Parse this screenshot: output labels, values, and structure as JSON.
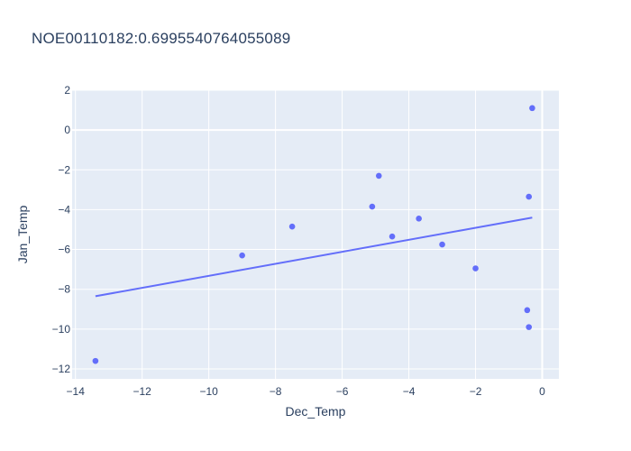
{
  "chart_data": {
    "type": "scatter",
    "title": "NOE00110182:0.6995540764055089",
    "xlabel": "Dec_Temp",
    "ylabel": "Jan_Temp",
    "xlim": [
      -14.1,
      0.5
    ],
    "ylim": [
      -12.5,
      2.0
    ],
    "xticks": [
      -14,
      -12,
      -10,
      -8,
      -6,
      -4,
      -2,
      0
    ],
    "yticks": [
      -12,
      -10,
      -8,
      -6,
      -4,
      -2,
      0,
      2
    ],
    "tick_labels_x": [
      "−14",
      "−12",
      "−10",
      "−8",
      "−6",
      "−4",
      "−2",
      "0"
    ],
    "tick_labels_y": [
      "−12",
      "−10",
      "−8",
      "−6",
      "−4",
      "−2",
      "0",
      "2"
    ],
    "grid": true,
    "colors": {
      "marker": "#636efa",
      "line": "#636efa",
      "plot_bg": "#e5ecf6",
      "grid": "#ffffff"
    },
    "series": [
      {
        "mode": "markers",
        "x": [
          -13.4,
          -9.0,
          -7.5,
          -5.1,
          -4.9,
          -4.5,
          -3.7,
          -3.0,
          -2.0,
          -0.45,
          -0.4,
          -0.4,
          -0.3
        ],
        "y": [
          -11.6,
          -6.3,
          -4.85,
          -3.85,
          -2.3,
          -5.35,
          -4.45,
          -5.75,
          -6.95,
          -9.05,
          -9.9,
          -3.35,
          1.1
        ]
      },
      {
        "mode": "lines",
        "x": [
          -13.4,
          -0.3
        ],
        "y": [
          -8.35,
          -4.4
        ]
      }
    ]
  }
}
